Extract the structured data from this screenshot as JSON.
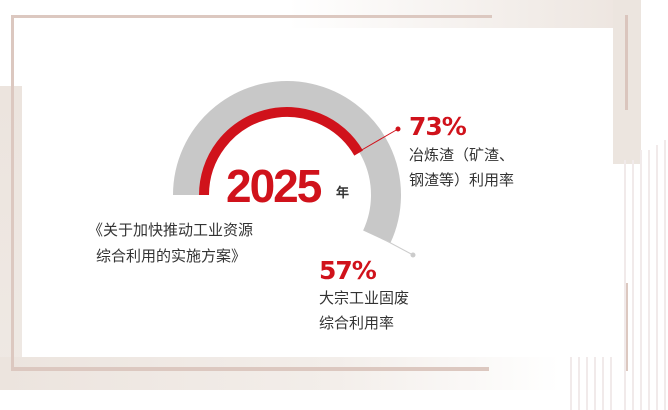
{
  "year": "2025",
  "year_unit": "年",
  "policy_lines": [
    "《关于加快推动工业资源",
    "综合利用的实施方案》"
  ],
  "metrics": [
    {
      "value": "73%",
      "percent": 73,
      "label_lines": [
        "冶炼渣（矿渣、",
        "钢渣等）利用率"
      ],
      "color": "#d0121b"
    },
    {
      "value": "57%",
      "percent": 57,
      "label_lines": [
        "大宗工业固废",
        "综合利用率"
      ],
      "color": "#c8c8c8"
    }
  ],
  "colors": {
    "accent": "#d0121b",
    "track": "#c8c8c8",
    "frame": "#dcc8c0"
  }
}
